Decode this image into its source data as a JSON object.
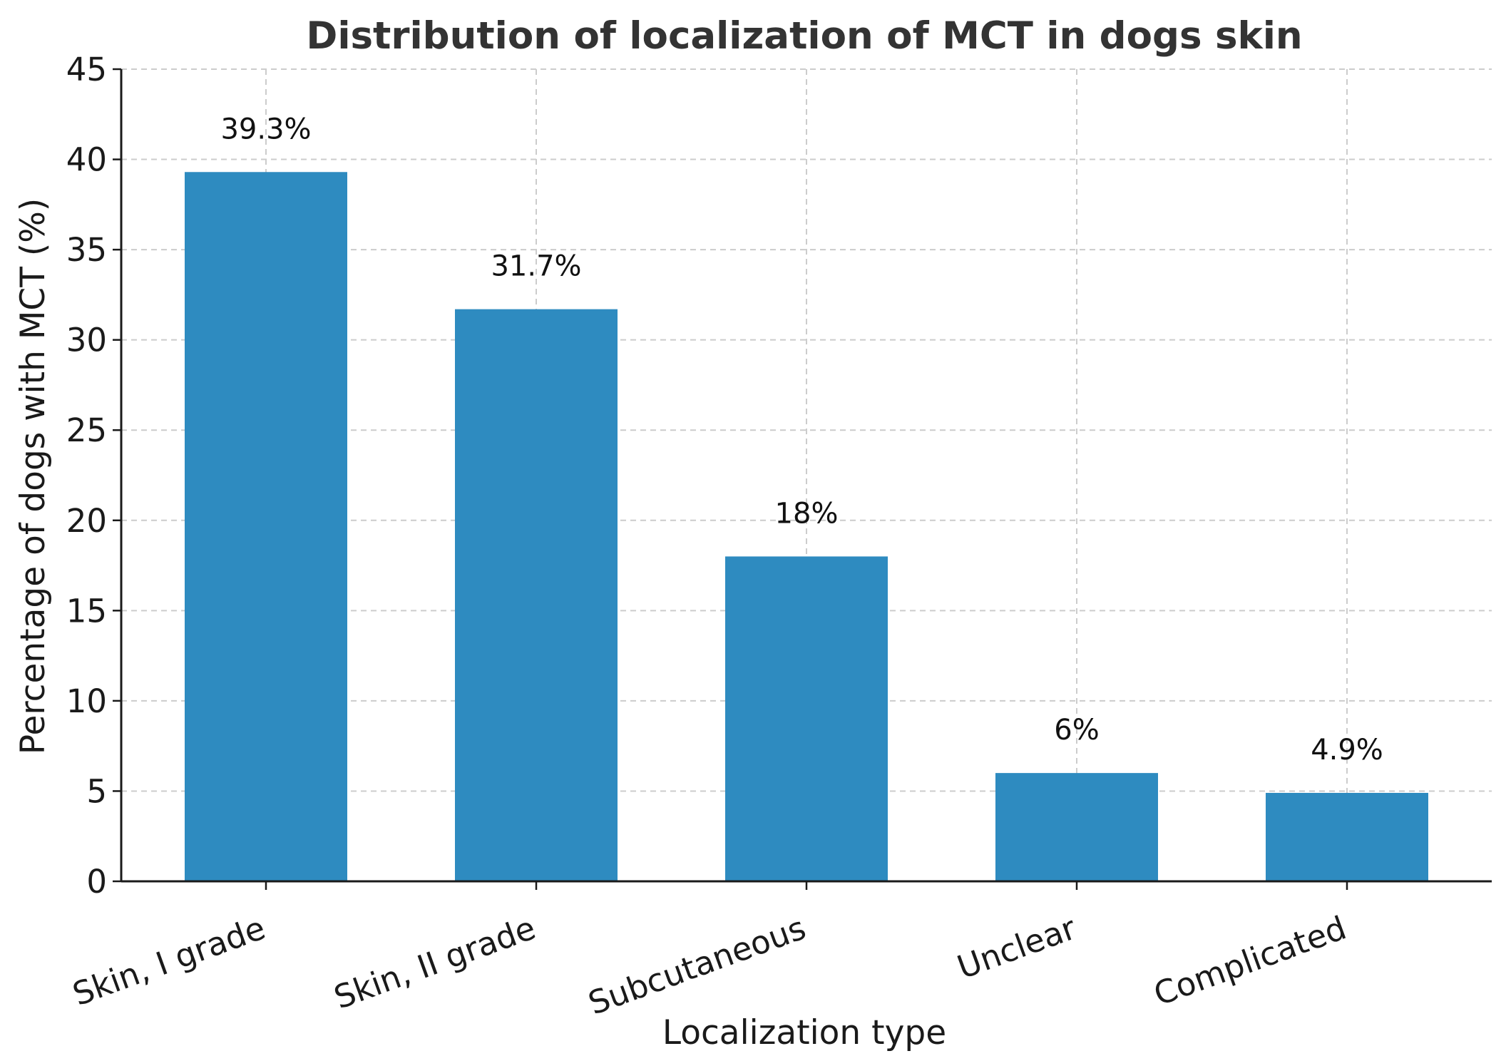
{
  "chart_data": {
    "type": "bar",
    "title": "Distribution of localization of MCT in dogs skin",
    "xlabel": "Localization type",
    "ylabel": "Percentage of dogs with MCT (%)",
    "categories": [
      "Skin, I grade",
      "Skin, II grade",
      "Subcutaneous",
      "Unclear",
      "Complicated"
    ],
    "values": [
      39.3,
      31.7,
      18,
      6,
      4.9
    ],
    "data_labels": [
      "39.3%",
      "31.7%",
      "18%",
      "6%",
      "4.9%"
    ],
    "ylim": [
      0,
      45
    ],
    "yticks": [
      0,
      5,
      10,
      15,
      20,
      25,
      30,
      35,
      40,
      45
    ],
    "grid": true,
    "bar_color": "#2e8bc0"
  }
}
